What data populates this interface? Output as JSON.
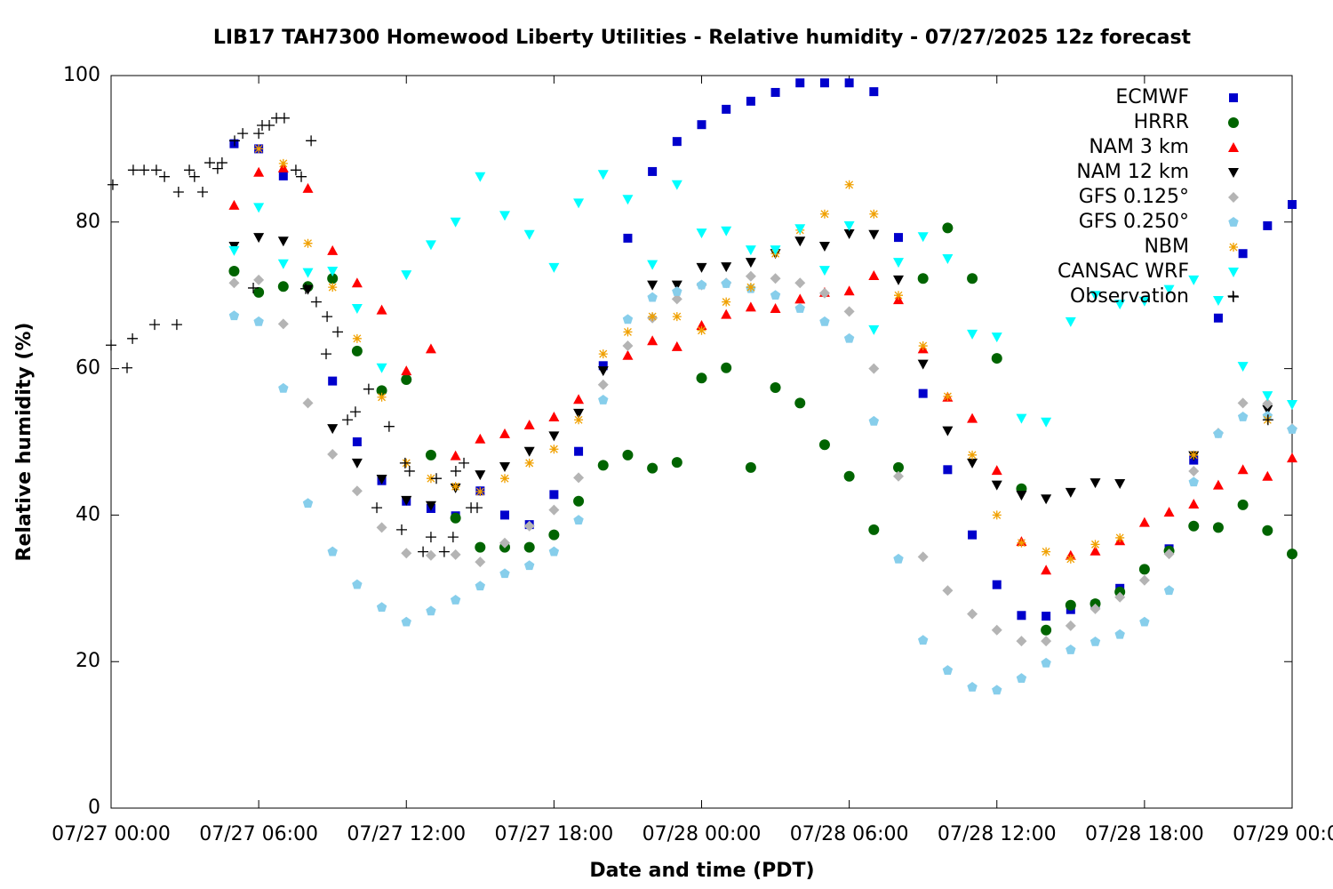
{
  "chart_data": {
    "type": "scatter",
    "title": "LIB17 TAH7300 Homewood Liberty Utilities - Relative humidity - 07/27/2025 12z forecast",
    "xlabel": "Date and time (PDT)",
    "ylabel": "Relative humidity (%)",
    "xlim": [
      0,
      48
    ],
    "ylim": [
      0,
      100
    ],
    "xticks": [
      {
        "value": 0,
        "label": "07/27 00:00"
      },
      {
        "value": 6,
        "label": "07/27 06:00"
      },
      {
        "value": 12,
        "label": "07/27 12:00"
      },
      {
        "value": 18,
        "label": "07/27 18:00"
      },
      {
        "value": 24,
        "label": "07/28 00:00"
      },
      {
        "value": 30,
        "label": "07/28 06:00"
      },
      {
        "value": 36,
        "label": "07/28 12:00"
      },
      {
        "value": 42,
        "label": "07/28 18:00"
      },
      {
        "value": 48,
        "label": "07/29 00:00"
      }
    ],
    "yticks": [
      0,
      20,
      40,
      60,
      80,
      100
    ],
    "legend": "upper right",
    "x": [
      5,
      6,
      7,
      8,
      9,
      10,
      11,
      12,
      13,
      14,
      15,
      16,
      17,
      18,
      19,
      20,
      21,
      22,
      23,
      24,
      25,
      26,
      27,
      28,
      29,
      30,
      31,
      32,
      33,
      34,
      35,
      36,
      37,
      38,
      39,
      40,
      41,
      42,
      43,
      44,
      45,
      46,
      47,
      48
    ],
    "series": [
      {
        "name": "ECMWF",
        "color": "#0000cc",
        "marker": "square",
        "values": [
          90.7,
          90,
          86.3,
          null,
          58.3,
          50,
          44.7,
          41.9,
          40.9,
          39.9,
          43.3,
          40,
          38.7,
          42.8,
          48.7,
          60.4,
          77.8,
          86.9,
          91,
          93.3,
          95.4,
          96.5,
          97.7,
          99,
          99,
          99,
          97.8,
          77.9,
          56.6,
          46.2,
          37.3,
          30.5,
          26.3,
          26.2,
          27.1,
          27.8,
          30,
          null,
          35.4,
          47.5,
          66.9,
          75.7,
          79.5,
          82.4
        ]
      },
      {
        "name": "HRRR",
        "color": "#006400",
        "marker": "circle",
        "values": [
          73.3,
          70.4,
          71.2,
          71.2,
          72.3,
          62.4,
          57,
          58.5,
          48.2,
          39.6,
          35.6,
          35.6,
          35.6,
          37.3,
          41.9,
          46.8,
          48.2,
          46.4,
          47.2,
          58.7,
          60.1,
          46.5,
          57.4,
          55.3,
          49.6,
          45.3,
          38,
          46.5,
          72.3,
          79.2,
          72.3,
          61.4,
          43.6,
          24.3,
          27.7,
          27.9,
          29.5,
          32.6,
          35.1,
          38.5,
          38.3,
          41.4,
          37.9,
          34.7
        ]
      },
      {
        "name": "NAM 3 km",
        "color": "#ff0000",
        "marker": "triangle-up",
        "values": [
          82.3,
          86.8,
          87.4,
          84.6,
          76.1,
          71.7,
          68,
          59.7,
          62.7,
          48.1,
          50.4,
          51.1,
          52.3,
          53.4,
          55.8,
          null,
          61.8,
          63.8,
          63,
          65.9,
          67.4,
          68.4,
          68.2,
          69.5,
          70.4,
          70.6,
          72.7,
          69.4,
          62.7,
          56.1,
          53.2,
          46.1,
          36.4,
          32.5,
          34.5,
          35.1,
          36.5,
          39,
          40.4,
          41.5,
          44.1,
          46.2,
          45.3,
          47.8
        ]
      },
      {
        "name": "NAM 12 km",
        "color": "#000000",
        "marker": "triangle-down",
        "values": [
          76.7,
          77.9,
          77.4,
          70.8,
          51.8,
          47.1,
          44.9,
          42,
          41.3,
          43.7,
          45.5,
          46.6,
          48.7,
          50.8,
          53.9,
          59.7,
          null,
          71.4,
          71.4,
          73.8,
          73.9,
          74.5,
          75.7,
          77.4,
          76.7,
          78.4,
          78.3,
          72.1,
          60.6,
          51.5,
          47.1,
          44.1,
          42.7,
          42.2,
          43.1,
          44.4,
          44.3,
          null,
          null,
          48.1,
          null,
          null,
          54.4,
          null
        ]
      },
      {
        "name": "GFS 0.125°",
        "color": "#b4b4b4",
        "marker": "diamond",
        "values": [
          71.7,
          72.1,
          66.1,
          55.3,
          48.3,
          43.3,
          38.3,
          34.8,
          34.5,
          34.6,
          33.6,
          36.2,
          38.5,
          40.7,
          45.1,
          57.8,
          63.1,
          66.9,
          69.5,
          71.4,
          71.7,
          72.6,
          72.3,
          71.7,
          70.3,
          67.8,
          60,
          45.3,
          34.3,
          29.7,
          26.5,
          24.3,
          22.8,
          22.8,
          24.9,
          27.2,
          28.8,
          31.1,
          34.7,
          46,
          51.2,
          55.3,
          55.2,
          51.8
        ]
      },
      {
        "name": "GFS 0.250°",
        "color": "#87ceeb",
        "marker": "pentagon",
        "values": [
          67.2,
          66.4,
          57.3,
          41.6,
          35,
          30.5,
          27.4,
          25.4,
          26.9,
          28.4,
          30.3,
          32,
          33.1,
          35,
          39.3,
          55.7,
          66.7,
          69.7,
          70.5,
          71.4,
          71.6,
          70.9,
          70,
          68.2,
          66.4,
          64.1,
          52.8,
          34,
          22.9,
          18.8,
          16.5,
          16.1,
          17.7,
          19.8,
          21.6,
          22.7,
          23.7,
          25.4,
          29.7,
          44.5,
          51.1,
          53.4,
          53.5,
          51.7
        ]
      },
      {
        "name": "NBM",
        "color": "#f0a000",
        "marker": "star",
        "values": [
          null,
          90,
          88,
          77.1,
          71.1,
          64.1,
          56.1,
          47.1,
          45,
          43.9,
          43.2,
          45,
          47.1,
          49,
          53,
          62,
          65,
          67.1,
          67.1,
          65.2,
          69.1,
          71.1,
          75.7,
          78.9,
          81.1,
          85.1,
          81.1,
          70,
          63.1,
          56.2,
          48.2,
          40,
          36.2,
          35,
          34,
          36,
          36.9,
          null,
          null,
          48.2,
          null,
          null,
          53,
          null
        ]
      },
      {
        "name": "CANSAC WRF",
        "color": "#00ffff",
        "marker": "triangle-down",
        "values": [
          76.1,
          82,
          74.3,
          73.1,
          73.3,
          68.2,
          60.1,
          72.8,
          76.9,
          80,
          86.2,
          80.9,
          78.3,
          73.8,
          82.6,
          86.5,
          83.1,
          74.2,
          85.1,
          78.5,
          78.8,
          76.2,
          76.2,
          79.1,
          73.4,
          79.5,
          65.3,
          74.5,
          78,
          75,
          64.7,
          64.3,
          53.2,
          52.7,
          66.4,
          70,
          68.8,
          69.2,
          70.8,
          72.1,
          69.3,
          60.3,
          56.3,
          55.1
        ]
      },
      {
        "name": "Observation",
        "color": "#000000",
        "marker": "plus",
        "x": [
          0,
          0.07,
          0.65,
          0.87,
          0.9,
          1.34,
          1.77,
          1.84,
          2.17,
          2.67,
          2.74,
          3.18,
          3.39,
          3.72,
          4.01,
          4.33,
          4.51,
          5.02,
          5.35,
          5.78,
          6,
          6.14,
          6.43,
          6.72,
          7.04,
          7.51,
          7.73,
          7.91,
          8.13,
          8.34,
          8.74,
          8.78,
          9.21,
          9.61,
          9.93,
          10.47,
          10.8,
          11.3,
          11.81,
          11.95,
          12.13,
          12.68,
          13,
          13.22,
          13.54,
          13.9,
          14.01,
          14.34,
          14.63,
          14.88,
          45.6,
          47.02
        ],
        "values": [
          63.2,
          85.1,
          60.1,
          64.1,
          87.1,
          87.1,
          66,
          87.1,
          86.2,
          66,
          84.1,
          87.1,
          86.2,
          84.1,
          88.1,
          87.3,
          88.1,
          91.1,
          92.1,
          71,
          92.1,
          93.2,
          93.2,
          94.2,
          94.2,
          87.1,
          86.2,
          70.9,
          91.1,
          69.1,
          62,
          67.1,
          65,
          53,
          54.1,
          57.2,
          41,
          52.1,
          38,
          47.1,
          46,
          35,
          37,
          45,
          35,
          37,
          46,
          47.1,
          41,
          41,
          69.9,
          53
        ]
      }
    ]
  }
}
